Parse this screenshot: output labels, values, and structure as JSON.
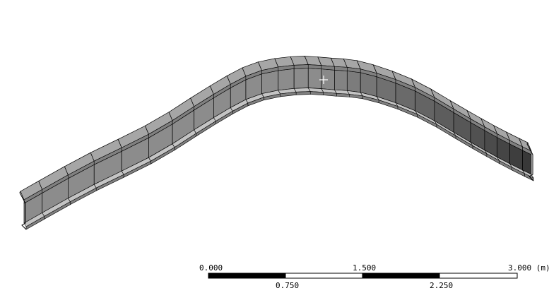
{
  "viewport": {
    "background": "#ffffff",
    "model": {
      "name": "curved-i-beam",
      "segments_per_side": 29,
      "colors": {
        "flange_top": "#a6a6a6",
        "flange_edge": "#808080",
        "web": "#8c8c8c",
        "web_dark": "#4a4a4a",
        "outline": "#000000",
        "flange_lip": "#c4c4c4"
      }
    },
    "cursor": {
      "icon": "crosshair-cursor-icon",
      "color": "#ffffff"
    }
  },
  "scale_bar": {
    "unit": "(m)",
    "labels_top": [
      "0.000",
      "1.500",
      "3.000 (m)"
    ],
    "labels_bottom": [
      "0.750",
      "2.250"
    ],
    "colors": {
      "dark": "#000000",
      "light": "#ffffff"
    }
  }
}
